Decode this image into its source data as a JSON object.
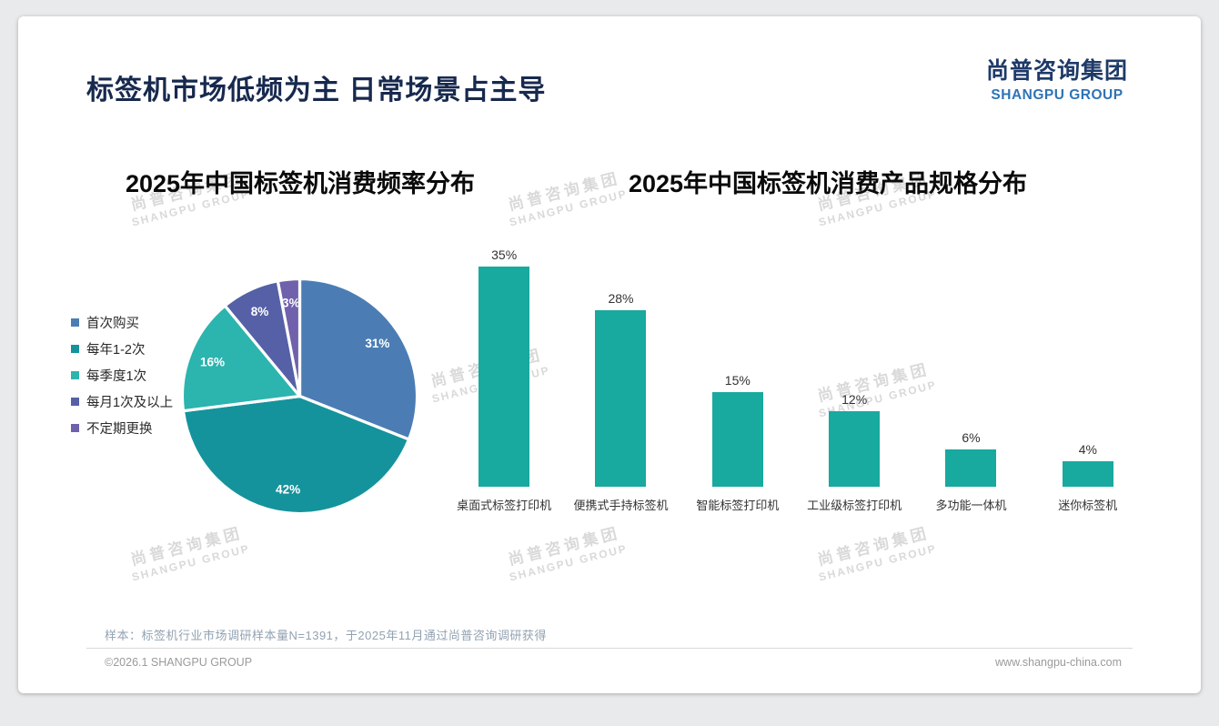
{
  "header": {
    "title": "标签机市场低频为主 日常场景占主导"
  },
  "brand": {
    "name_cn": "尚普咨询集团",
    "name_en": "SHANGPU GROUP",
    "watermark_cn": "尚普咨询集团",
    "watermark_en": "SHANGPU GROUP"
  },
  "chart_data": [
    {
      "type": "pie",
      "title": "2025年中国标签机消费频率分布",
      "labels": [
        "首次购买",
        "每年1-2次",
        "每季度1次",
        "每月1次及以上",
        "不定期更换"
      ],
      "values": [
        31,
        42,
        16,
        8,
        3
      ],
      "unit": "%",
      "colors": [
        "#4b7db4",
        "#15939c",
        "#2cb4ae",
        "#5560a6",
        "#6f61ab"
      ],
      "legend_position": "left",
      "start_angle_deg": -90,
      "direction": "clockwise",
      "data_labels": [
        "31%",
        "42%",
        "16%",
        "8%",
        "3%"
      ]
    },
    {
      "type": "bar",
      "title": "2025年中国标签机消费产品规格分布",
      "categories": [
        "桌面式标签打印机",
        "便携式手持标签机",
        "智能标签打印机",
        "工业级标签打印机",
        "多功能一体机",
        "迷你标签机"
      ],
      "values": [
        35,
        28,
        15,
        12,
        6,
        4
      ],
      "unit": "%",
      "bar_color": "#18a99f",
      "ylim": [
        0,
        38
      ],
      "grid": false,
      "data_labels": [
        "35%",
        "28%",
        "15%",
        "12%",
        "6%",
        "4%"
      ]
    }
  ],
  "footnote": {
    "sample_text": "样本：标签机行业市场调研样本量N=1391，于2025年11月通过尚普咨询调研获得"
  },
  "footer": {
    "left": "©2026.1 SHANGPU GROUP",
    "right": "www.shangpu-china.com"
  }
}
